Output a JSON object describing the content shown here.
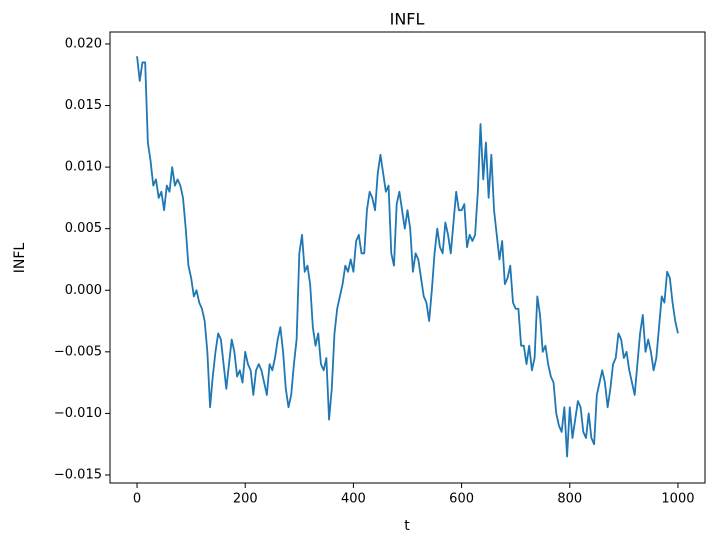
{
  "chart_data": {
    "type": "line",
    "title": "INFL",
    "xlabel": "t",
    "ylabel": "INFL",
    "color": "#1f77b4",
    "x": [
      0,
      5,
      10,
      15,
      20,
      25,
      30,
      35,
      40,
      45,
      50,
      55,
      60,
      65,
      70,
      75,
      80,
      85,
      90,
      95,
      100,
      105,
      110,
      115,
      120,
      125,
      130,
      135,
      140,
      145,
      150,
      155,
      160,
      165,
      170,
      175,
      180,
      185,
      190,
      195,
      200,
      205,
      210,
      215,
      220,
      225,
      230,
      235,
      240,
      245,
      250,
      255,
      260,
      265,
      270,
      275,
      280,
      285,
      290,
      295,
      300,
      305,
      310,
      315,
      320,
      325,
      330,
      335,
      340,
      345,
      350,
      355,
      360,
      365,
      370,
      375,
      380,
      385,
      390,
      395,
      400,
      405,
      410,
      415,
      420,
      425,
      430,
      435,
      440,
      445,
      450,
      455,
      460,
      465,
      470,
      475,
      480,
      485,
      490,
      495,
      500,
      505,
      510,
      515,
      520,
      525,
      530,
      535,
      540,
      545,
      550,
      555,
      560,
      565,
      570,
      575,
      580,
      585,
      590,
      595,
      600,
      605,
      610,
      615,
      620,
      625,
      630,
      635,
      640,
      645,
      650,
      655,
      660,
      665,
      670,
      675,
      680,
      685,
      690,
      695,
      700,
      705,
      710,
      715,
      720,
      725,
      730,
      735,
      740,
      745,
      750,
      755,
      760,
      765,
      770,
      775,
      780,
      785,
      790,
      795,
      800,
      805,
      810,
      815,
      820,
      825,
      830,
      835,
      840,
      845,
      850,
      855,
      860,
      865,
      870,
      875,
      880,
      885,
      890,
      895,
      900,
      905,
      910,
      915,
      920,
      925,
      930,
      935,
      940,
      945,
      950,
      955,
      960,
      965,
      970,
      975,
      980,
      985,
      990,
      995,
      1000
    ],
    "values": [
      0.019,
      0.017,
      0.0185,
      0.0185,
      0.012,
      0.0105,
      0.0085,
      0.009,
      0.0075,
      0.008,
      0.0065,
      0.0085,
      0.008,
      0.01,
      0.0085,
      0.009,
      0.0085,
      0.0075,
      0.005,
      0.002,
      0.001,
      -0.0005,
      0.0,
      -0.001,
      -0.0015,
      -0.0025,
      -0.005,
      -0.0095,
      -0.007,
      -0.005,
      -0.0035,
      -0.004,
      -0.006,
      -0.008,
      -0.006,
      -0.004,
      -0.005,
      -0.007,
      -0.0065,
      -0.0075,
      -0.005,
      -0.006,
      -0.0065,
      -0.0085,
      -0.0065,
      -0.006,
      -0.0065,
      -0.0075,
      -0.0085,
      -0.006,
      -0.0065,
      -0.0055,
      -0.004,
      -0.003,
      -0.005,
      -0.008,
      -0.0095,
      -0.0085,
      -0.006,
      -0.004,
      0.003,
      0.0045,
      0.0015,
      0.002,
      0.0005,
      -0.003,
      -0.0045,
      -0.0035,
      -0.006,
      -0.0065,
      -0.0055,
      -0.0105,
      -0.008,
      -0.0035,
      -0.0015,
      -0.0005,
      0.0005,
      0.002,
      0.0015,
      0.0025,
      0.0015,
      0.004,
      0.0045,
      0.003,
      0.003,
      0.0065,
      0.008,
      0.0075,
      0.0065,
      0.0095,
      0.011,
      0.0095,
      0.008,
      0.0085,
      0.003,
      0.002,
      0.007,
      0.008,
      0.0065,
      0.005,
      0.0065,
      0.005,
      0.0015,
      0.003,
      0.0025,
      0.001,
      -0.0005,
      -0.001,
      -0.0025,
      0.0,
      0.003,
      0.005,
      0.0035,
      0.003,
      0.0055,
      0.0045,
      0.003,
      0.0055,
      0.008,
      0.0065,
      0.0065,
      0.007,
      0.0035,
      0.0045,
      0.004,
      0.0045,
      0.008,
      0.0135,
      0.009,
      0.012,
      0.0075,
      0.011,
      0.0065,
      0.0045,
      0.0025,
      0.004,
      0.0005,
      0.001,
      0.002,
      -0.001,
      -0.0015,
      -0.0015,
      -0.0045,
      -0.0045,
      -0.006,
      -0.0045,
      -0.0065,
      -0.0055,
      -0.0005,
      -0.002,
      -0.005,
      -0.0045,
      -0.006,
      -0.007,
      -0.0075,
      -0.01,
      -0.011,
      -0.0115,
      -0.0095,
      -0.0135,
      -0.0095,
      -0.012,
      -0.0105,
      -0.009,
      -0.0095,
      -0.0115,
      -0.012,
      -0.01,
      -0.012,
      -0.0125,
      -0.0085,
      -0.0075,
      -0.0065,
      -0.0075,
      -0.0095,
      -0.008,
      -0.006,
      -0.0055,
      -0.0035,
      -0.004,
      -0.0055,
      -0.005,
      -0.0065,
      -0.0075,
      -0.0085,
      -0.006,
      -0.0035,
      -0.002,
      -0.005,
      -0.004,
      -0.005,
      -0.0065,
      -0.0055,
      -0.003,
      -0.0005,
      -0.001,
      0.0015,
      0.001,
      -0.001,
      -0.0025,
      -0.0035
    ],
    "xlim": [
      -50,
      1050
    ],
    "ylim": [
      -0.01565,
      0.02097
    ],
    "xticks": [
      0,
      200,
      400,
      600,
      800,
      1000
    ],
    "yticks": [
      {
        "value": -0.015,
        "label": "−0.015"
      },
      {
        "value": -0.01,
        "label": "−0.010"
      },
      {
        "value": -0.005,
        "label": "−0.005"
      },
      {
        "value": 0,
        "label": "0.000"
      },
      {
        "value": 0.005,
        "label": "0.005"
      },
      {
        "value": 0.01,
        "label": "0.010"
      },
      {
        "value": 0.015,
        "label": "0.015"
      },
      {
        "value": 0.02,
        "label": "0.020"
      }
    ]
  }
}
